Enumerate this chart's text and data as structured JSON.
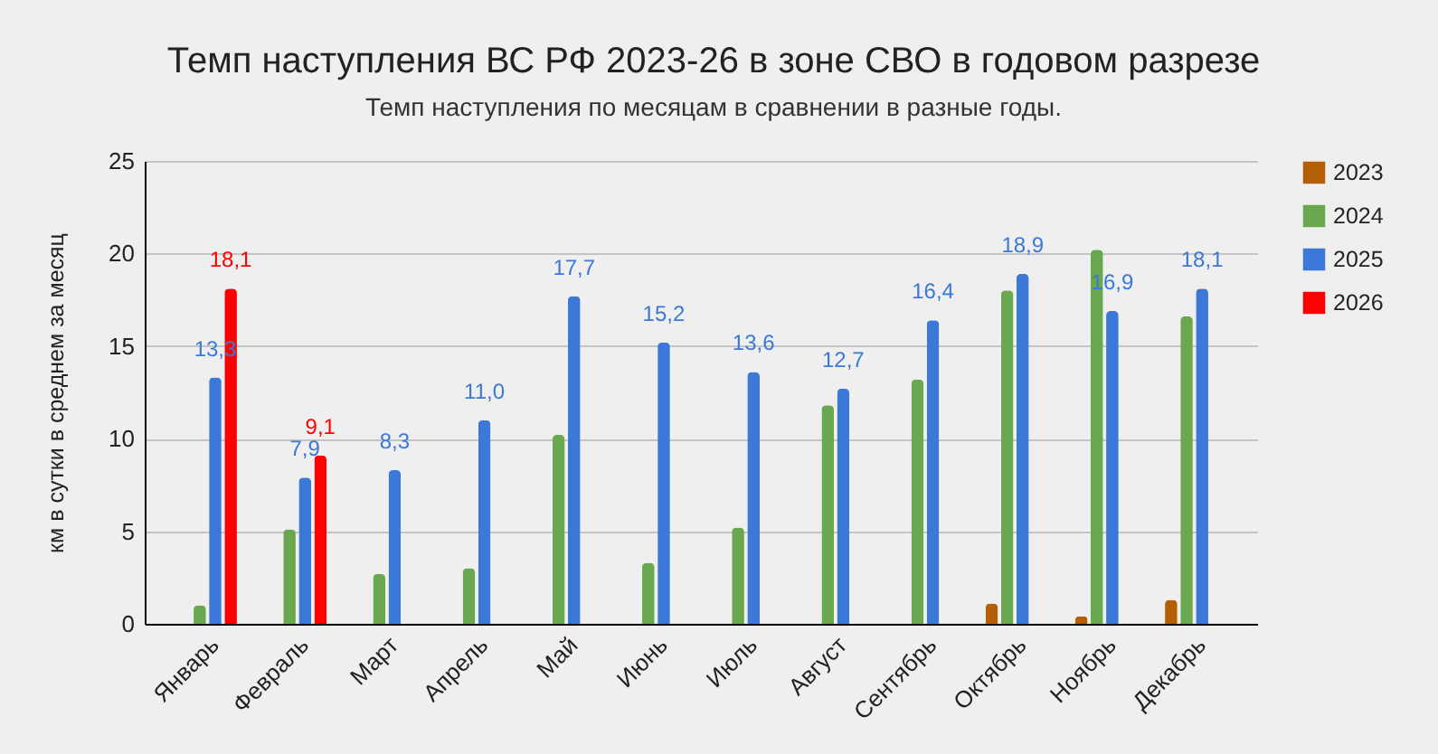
{
  "chart_data": {
    "type": "bar",
    "title": "Темп наступления ВС РФ 2023-26 в зоне СВО в годовом разрезе",
    "subtitle": "Темп наступления по месяцам в сравнении в разные годы.",
    "ylabel": "км в сутки в среднем за месяц",
    "categories": [
      "Январь",
      "Февраль",
      "Март",
      "Апрель",
      "Май",
      "Июнь",
      "Июль",
      "Август",
      "Сентябрь",
      "Октябрь",
      "Ноябрь",
      "Декабрь"
    ],
    "series": [
      {
        "name": "2023",
        "color": "#b45f06",
        "values": [
          null,
          null,
          null,
          null,
          null,
          null,
          null,
          null,
          null,
          1.1,
          0.4,
          1.3
        ]
      },
      {
        "name": "2024",
        "color": "#6aa84f",
        "values": [
          1.0,
          5.1,
          2.7,
          3.0,
          10.2,
          3.3,
          5.2,
          11.8,
          13.2,
          18.0,
          20.2,
          16.6
        ]
      },
      {
        "name": "2025",
        "color": "#3c78d8",
        "values": [
          13.3,
          7.9,
          8.3,
          11.0,
          17.7,
          15.2,
          13.6,
          12.7,
          16.4,
          18.9,
          16.9,
          18.1
        ],
        "value_labels": [
          "13,3",
          "7,9",
          "8,3",
          "11,0",
          "17,7",
          "15,2",
          "13,6",
          "12,7",
          "16,4",
          "18,9",
          "16,9",
          "18,1"
        ]
      },
      {
        "name": "2026",
        "color": "#ff0000",
        "values": [
          18.1,
          9.1,
          null,
          null,
          null,
          null,
          null,
          null,
          null,
          null,
          null,
          null
        ],
        "value_labels": [
          "18,1",
          "9,1",
          null,
          null,
          null,
          null,
          null,
          null,
          null,
          null,
          null,
          null
        ]
      }
    ],
    "ylim": [
      0,
      25
    ],
    "yticks": [
      0,
      5,
      10,
      15,
      20,
      25
    ],
    "grid": "y",
    "legend": "right"
  }
}
